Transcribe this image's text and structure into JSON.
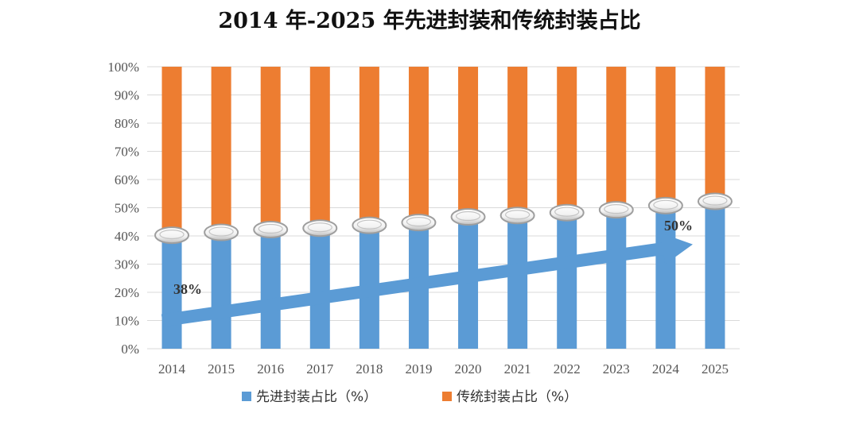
{
  "chart_data": {
    "type": "bar",
    "stacked": true,
    "title": "2014 年-2025 年先进封装和传统封装占比",
    "categories": [
      "2014",
      "2015",
      "2016",
      "2017",
      "2018",
      "2019",
      "2020",
      "2021",
      "2022",
      "2023",
      "2024",
      "2025"
    ],
    "series": [
      {
        "name": "先进封装占比（%）",
        "color": "#5B9BD5",
        "values": [
          38,
          39,
          40,
          40.5,
          41.5,
          42.5,
          44.5,
          45,
          46,
          47,
          48.5,
          50
        ]
      },
      {
        "name": "传统封装占比（%）",
        "color": "#ED7D31",
        "values": [
          62,
          61,
          60,
          59.5,
          58.5,
          57.5,
          55.5,
          55,
          54,
          53,
          51.5,
          50
        ]
      }
    ],
    "ylim": [
      0,
      100
    ],
    "yticks": [
      "0%",
      "10%",
      "20%",
      "30%",
      "40%",
      "50%",
      "60%",
      "70%",
      "80%",
      "90%",
      "100%"
    ],
    "grid": true,
    "legend_position": "bottom",
    "annotations": [
      {
        "text": "38%",
        "category": "2014"
      },
      {
        "text": "50%",
        "category": "2025"
      }
    ],
    "trend_arrow": {
      "from": [
        2014,
        10
      ],
      "to": [
        2025,
        37
      ],
      "color": "#5B9BD5"
    }
  }
}
